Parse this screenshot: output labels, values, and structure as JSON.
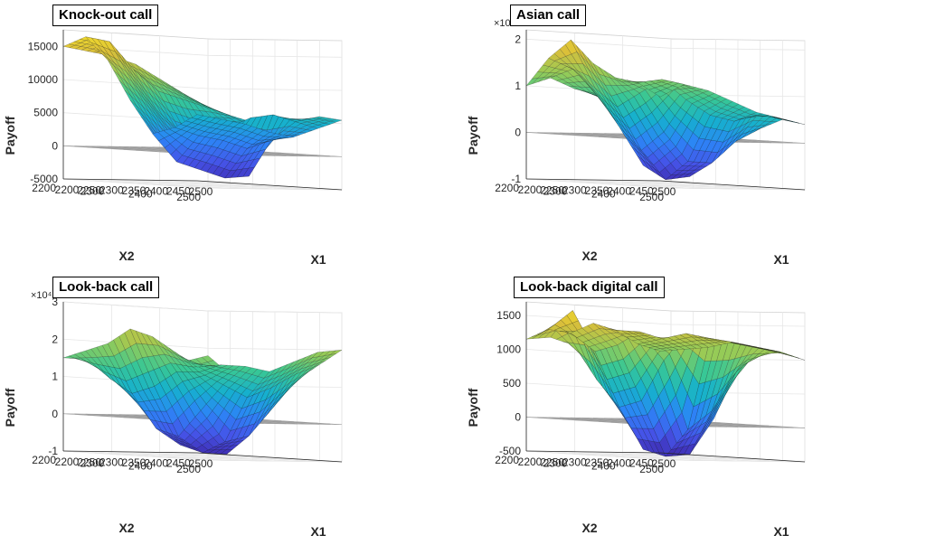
{
  "chart_data": [
    {
      "type": "surface",
      "title": "Knock-out call",
      "xlabel": "X1",
      "ylabel": "X2",
      "zlabel": "Payoff",
      "x_ticks": [
        "2200",
        "2250",
        "2300",
        "2350",
        "2400",
        "2450",
        "2500"
      ],
      "y_ticks": [
        "2200",
        "2300",
        "2400",
        "2500"
      ],
      "z_ticks": [
        "-5000",
        "0",
        "5000",
        "10000",
        "15000"
      ],
      "z_multiplier": "",
      "xlim": [
        2200,
        2500
      ],
      "ylim": [
        2200,
        2500
      ],
      "zlim": [
        -5000,
        17500
      ],
      "surface": [
        [
          7000,
          6000,
          5000,
          4000,
          5000,
          6000,
          5500
        ],
        [
          9000,
          7000,
          4000,
          5500,
          6000,
          5000,
          4000
        ],
        [
          11000,
          8000,
          2000,
          200,
          -3500,
          2000,
          2500
        ],
        [
          13000,
          9000,
          3000,
          -200,
          -4000,
          500,
          3000
        ],
        [
          14000,
          12000,
          6000,
          1000,
          -3000,
          1500,
          4000
        ],
        [
          14500,
          16000,
          10000,
          4000,
          -2000,
          2000,
          4500
        ],
        [
          15000,
          16500,
          13000,
          7000,
          2000,
          3000,
          5000
        ]
      ],
      "gridlines": true
    },
    {
      "type": "surface",
      "title": "Asian call",
      "xlabel": "X1",
      "ylabel": "X2",
      "zlabel": "Payoff",
      "x_ticks": [
        "2200",
        "2250",
        "2300",
        "2350",
        "2400",
        "2450",
        "2500"
      ],
      "y_ticks": [
        "2200",
        "2300",
        "2400",
        "2500"
      ],
      "z_ticks": [
        "-1",
        "0",
        "1",
        "2"
      ],
      "z_multiplier": "×10⁴",
      "xlim": [
        2200,
        2500
      ],
      "ylim": [
        2200,
        2500
      ],
      "zlim": [
        -1,
        2.2
      ],
      "surface": [
        [
          1.0,
          0.6,
          0.3,
          0.2,
          0.3,
          0.5,
          0.4
        ],
        [
          0.9,
          0.7,
          0.2,
          -0.3,
          0.0,
          0.6,
          0.5
        ],
        [
          0.8,
          0.5,
          -0.4,
          -0.8,
          -0.5,
          0.4,
          0.6
        ],
        [
          0.9,
          0.6,
          -0.6,
          -0.9,
          -0.5,
          0.5,
          0.8
        ],
        [
          1.0,
          0.9,
          0.2,
          -0.3,
          0.1,
          0.8,
          1.0
        ],
        [
          1.2,
          1.4,
          1.0,
          0.6,
          0.9,
          1.2,
          1.1
        ],
        [
          1.0,
          1.6,
          2.0,
          1.5,
          1.2,
          1.1,
          0.8
        ]
      ],
      "gridlines": true
    },
    {
      "type": "surface",
      "title": "Look-back call",
      "xlabel": "X1",
      "ylabel": "X2",
      "zlabel": "Payoff",
      "x_ticks": [
        "2200",
        "2250",
        "2300",
        "2350",
        "2400",
        "2450",
        "2500"
      ],
      "y_ticks": [
        "2200",
        "2300",
        "2400",
        "2500"
      ],
      "z_ticks": [
        "-1",
        "0",
        "1",
        "2",
        "3"
      ],
      "z_multiplier": "×10⁴",
      "xlim": [
        2200,
        2500
      ],
      "ylim": [
        2200,
        2500
      ],
      "zlim": [
        -1,
        3
      ],
      "surface": [
        [
          1.8,
          1.3,
          0.8,
          0.8,
          1.2,
          1.6,
          2.0
        ],
        [
          1.6,
          1.0,
          0.2,
          -0.3,
          0.4,
          1.3,
          1.9
        ],
        [
          1.4,
          0.6,
          -0.5,
          -0.9,
          -0.4,
          0.9,
          1.6
        ],
        [
          1.3,
          0.4,
          -0.7,
          -0.9,
          -0.6,
          0.6,
          1.3
        ],
        [
          1.4,
          0.6,
          -0.3,
          -0.5,
          0.2,
          0.9,
          1.4
        ],
        [
          1.5,
          1.0,
          0.6,
          0.8,
          1.2,
          1.2,
          1.4
        ],
        [
          1.5,
          1.7,
          1.9,
          2.3,
          2.1,
          1.7,
          1.3
        ]
      ],
      "gridlines": true
    },
    {
      "type": "surface",
      "title": "Look-back digital call",
      "xlabel": "X1",
      "ylabel": "X2",
      "zlabel": "Payoff",
      "x_ticks": [
        "2200",
        "2250",
        "2300",
        "2350",
        "2400",
        "2450",
        "2500"
      ],
      "y_ticks": [
        "2200",
        "2300",
        "2400",
        "2500"
      ],
      "z_ticks": [
        "-500",
        "0",
        "500",
        "1000",
        "1500"
      ],
      "z_multiplier": "",
      "xlim": [
        2200,
        2500
      ],
      "ylim": [
        2200,
        2500
      ],
      "zlim": [
        -500,
        1700
      ],
      "surface": [
        [
          1100,
          900,
          600,
          1000,
          1100,
          1100,
          1000
        ],
        [
          1050,
          700,
          100,
          100,
          800,
          1150,
          1100
        ],
        [
          1000,
          400,
          -300,
          -450,
          200,
          1200,
          1150
        ],
        [
          1000,
          200,
          -400,
          -500,
          -100,
          1250,
          1200
        ],
        [
          1100,
          600,
          200,
          300,
          900,
          1300,
          1100
        ],
        [
          1200,
          1600,
          1000,
          1100,
          1300,
          1200,
          1050
        ],
        [
          1150,
          1300,
          1250,
          1400,
          1300,
          1100,
          1000
        ]
      ],
      "gridlines": true
    }
  ]
}
